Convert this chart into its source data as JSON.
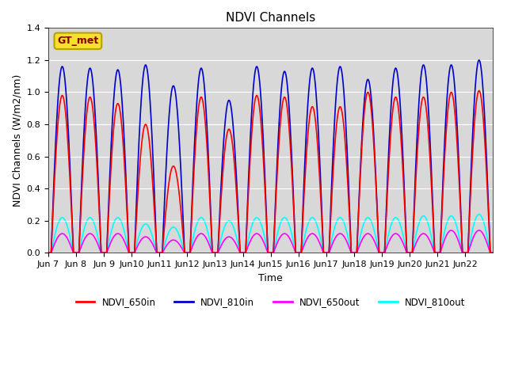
{
  "title": "NDVI Channels",
  "xlabel": "Time",
  "ylabel": "NDVI Channels (W/m2/nm)",
  "ylim": [
    0,
    1.4
  ],
  "background_color": "#d8d8d8",
  "gt_met_label": "GT_met",
  "legend_entries": [
    "NDVI_650in",
    "NDVI_810in",
    "NDVI_650out",
    "NDVI_810out"
  ],
  "line_colors": [
    "red",
    "#0000cc",
    "magenta",
    "cyan"
  ],
  "num_days": 16,
  "peaks_810in": [
    1.16,
    1.15,
    1.14,
    1.17,
    1.04,
    1.15,
    0.95,
    1.16,
    1.13,
    1.15,
    1.16,
    1.08,
    1.15,
    1.17,
    1.17,
    1.2
  ],
  "peaks_650in": [
    0.98,
    0.97,
    0.93,
    0.8,
    0.54,
    0.97,
    0.77,
    0.98,
    0.97,
    0.91,
    0.91,
    1.0,
    0.97,
    0.97,
    1.0,
    1.01
  ],
  "peaks_650out": [
    0.12,
    0.12,
    0.12,
    0.1,
    0.08,
    0.12,
    0.1,
    0.12,
    0.12,
    0.12,
    0.12,
    0.12,
    0.12,
    0.12,
    0.14,
    0.14
  ],
  "peaks_810out": [
    0.22,
    0.22,
    0.22,
    0.18,
    0.16,
    0.22,
    0.2,
    0.22,
    0.22,
    0.22,
    0.22,
    0.22,
    0.22,
    0.23,
    0.23,
    0.24
  ],
  "tick_days": [
    7,
    8,
    9,
    10,
    11,
    12,
    13,
    14,
    15,
    16,
    17,
    18,
    19,
    20,
    21,
    22
  ],
  "yticks": [
    0.0,
    0.2,
    0.4,
    0.6,
    0.8,
    1.0,
    1.2,
    1.4
  ]
}
